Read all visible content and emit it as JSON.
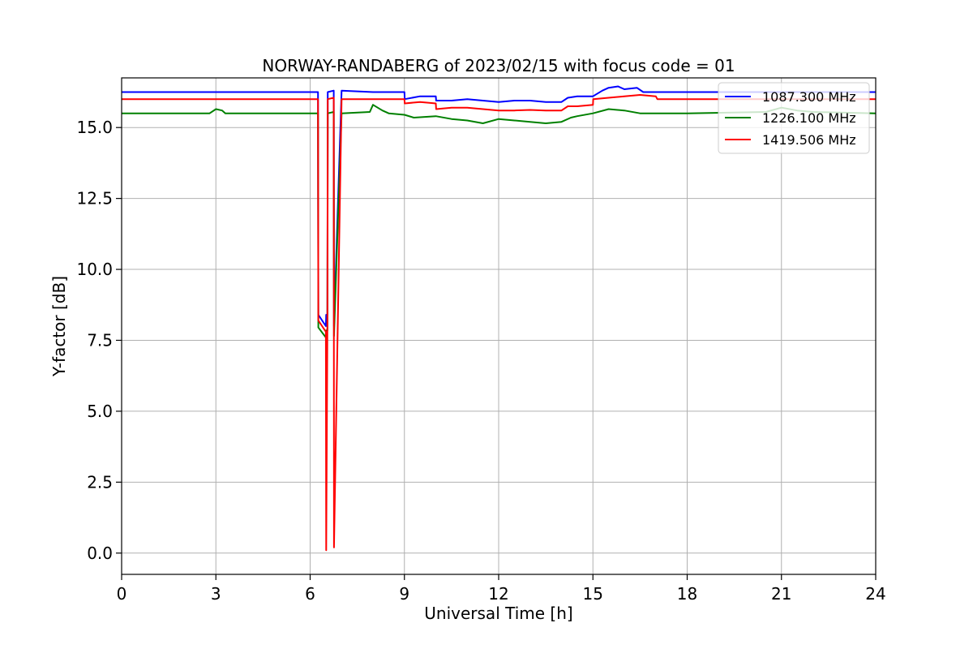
{
  "chart_data": {
    "type": "line",
    "title": "NORWAY-RANDABERG of 2023/02/15 with focus code = 01",
    "xlabel": "Universal Time [h]",
    "ylabel": "Y-factor [dB]",
    "xlim": [
      0,
      24
    ],
    "ylim": [
      -0.75,
      16.75
    ],
    "xticks": [
      0,
      3,
      6,
      9,
      12,
      15,
      18,
      21,
      24
    ],
    "xtick_labels": [
      "0",
      "3",
      "6",
      "9",
      "12",
      "15",
      "18",
      "21",
      "24"
    ],
    "yticks": [
      0,
      2.5,
      5,
      7.5,
      10,
      12.5,
      15
    ],
    "ytick_labels": [
      "0.0",
      "2.5",
      "5.0",
      "7.5",
      "10.0",
      "12.5",
      "15.0"
    ],
    "grid": true,
    "legend_position": "top-right",
    "series": [
      {
        "name": "1087.300 MHz",
        "color": "#0000ff",
        "x": [
          0,
          6.25,
          6.26,
          6.5,
          6.51,
          6.55,
          6.56,
          6.75,
          6.76,
          7.0,
          8.0,
          9.0,
          9.01,
          9.5,
          10.0,
          10.01,
          10.5,
          11.0,
          11.5,
          12.0,
          12.5,
          13.0,
          13.5,
          14.0,
          14.2,
          14.5,
          15.0,
          15.3,
          15.5,
          15.8,
          16.0,
          16.4,
          16.6,
          17.0,
          17.2,
          18.0,
          24.0
        ],
        "y": [
          16.25,
          16.25,
          8.4,
          8.0,
          8.4,
          8.4,
          16.25,
          16.3,
          8.0,
          16.3,
          16.25,
          16.25,
          16.0,
          16.1,
          16.1,
          15.95,
          15.95,
          16.0,
          15.95,
          15.9,
          15.95,
          15.95,
          15.9,
          15.9,
          16.05,
          16.1,
          16.1,
          16.3,
          16.4,
          16.45,
          16.35,
          16.4,
          16.25,
          16.25,
          16.25,
          16.25,
          16.25
        ]
      },
      {
        "name": "1226.100 MHz",
        "color": "#008000",
        "x": [
          0,
          2.8,
          3.0,
          3.2,
          3.3,
          6.25,
          6.26,
          6.5,
          6.51,
          6.55,
          6.56,
          6.75,
          6.76,
          7.0,
          7.9,
          8.0,
          8.3,
          8.5,
          9.0,
          9.3,
          10.0,
          10.5,
          11.0,
          11.5,
          12.0,
          12.5,
          13.0,
          13.5,
          14.0,
          14.3,
          14.5,
          15.0,
          15.5,
          16.0,
          16.5,
          17.0,
          18.0,
          20.5,
          21.0,
          21.5,
          22.0,
          24.0
        ],
        "y": [
          15.5,
          15.5,
          15.65,
          15.6,
          15.5,
          15.5,
          7.95,
          7.6,
          7.85,
          7.85,
          15.5,
          15.55,
          7.65,
          15.5,
          15.55,
          15.8,
          15.6,
          15.5,
          15.45,
          15.35,
          15.4,
          15.3,
          15.25,
          15.15,
          15.3,
          15.25,
          15.2,
          15.15,
          15.2,
          15.35,
          15.4,
          15.5,
          15.65,
          15.6,
          15.5,
          15.5,
          15.5,
          15.55,
          15.7,
          15.6,
          15.55,
          15.5
        ]
      },
      {
        "name": "1419.506 MHz",
        "color": "#ff0000",
        "x": [
          0,
          6.25,
          6.26,
          6.5,
          6.51,
          6.55,
          6.56,
          6.75,
          6.76,
          7.0,
          9.0,
          9.01,
          9.5,
          10.0,
          10.01,
          10.5,
          11.0,
          11.5,
          12.0,
          12.5,
          13.0,
          13.5,
          14.0,
          14.2,
          14.5,
          15.0,
          15.01,
          15.5,
          16.0,
          16.5,
          17.0,
          17.05,
          18.0,
          24.0
        ],
        "y": [
          16.0,
          16.0,
          8.2,
          7.8,
          0.1,
          8.1,
          16.0,
          16.05,
          0.2,
          16.0,
          16.0,
          15.85,
          15.9,
          15.85,
          15.65,
          15.7,
          15.7,
          15.65,
          15.6,
          15.6,
          15.62,
          15.6,
          15.6,
          15.75,
          15.75,
          15.8,
          16.0,
          16.05,
          16.1,
          16.15,
          16.1,
          16.0,
          16.0,
          16.0
        ]
      }
    ]
  }
}
